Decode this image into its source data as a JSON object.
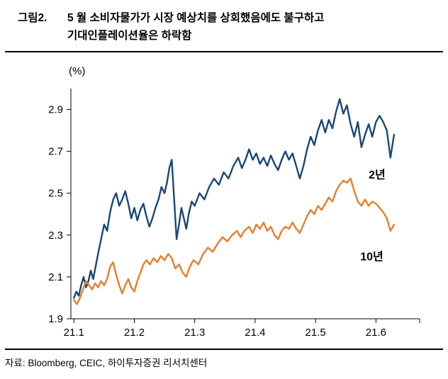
{
  "header": {
    "figure_label": "그림2.",
    "title_line1": "5 월 소비자물가가 시장 예상치를 상회했음에도 불구하고",
    "title_line2": "기대인플레이션율은 하락함"
  },
  "footer": {
    "source": "자료: Bloomberg, CEIC, 하이투자증권 리서치센터"
  },
  "chart_data": {
    "type": "line",
    "title": "5 월 소비자물가가 시장 예상치를 상회했음에도 불구하고 기대인플레이션율은 하락함",
    "unit_label": "(%)",
    "xlabel": "",
    "ylabel": "(%)",
    "grid": false,
    "legend_position": "inline-right",
    "xlim": [
      21.095,
      21.67
    ],
    "ylim": [
      1.9,
      3.0
    ],
    "x_ticks": [
      21.1,
      21.2,
      21.3,
      21.4,
      21.5,
      21.6
    ],
    "x_tick_labels": [
      "21.1",
      "21.2",
      "21.3",
      "21.4",
      "21.5",
      "21.6"
    ],
    "y_ticks": [
      1.9,
      2.1,
      2.3,
      2.5,
      2.7,
      2.9
    ],
    "y_tick_labels": [
      "1.9",
      "2.1",
      "2.3",
      "2.5",
      "2.7",
      "2.9"
    ],
    "series": [
      {
        "name": "2년",
        "color": "#1B4677",
        "label_pos": [
          21.588,
          2.57
        ],
        "points": [
          [
            21.1,
            2.0
          ],
          [
            21.104,
            2.03
          ],
          [
            21.108,
            2.01
          ],
          [
            21.112,
            2.06
          ],
          [
            21.116,
            2.1
          ],
          [
            21.12,
            2.05
          ],
          [
            21.124,
            2.08
          ],
          [
            21.128,
            2.13
          ],
          [
            21.132,
            2.09
          ],
          [
            21.136,
            2.15
          ],
          [
            21.14,
            2.21
          ],
          [
            21.145,
            2.28
          ],
          [
            21.15,
            2.35
          ],
          [
            21.155,
            2.32
          ],
          [
            21.16,
            2.41
          ],
          [
            21.165,
            2.47
          ],
          [
            21.17,
            2.5
          ],
          [
            21.175,
            2.44
          ],
          [
            21.18,
            2.47
          ],
          [
            21.185,
            2.51
          ],
          [
            21.19,
            2.45
          ],
          [
            21.195,
            2.38
          ],
          [
            21.2,
            2.43
          ],
          [
            21.205,
            2.37
          ],
          [
            21.21,
            2.42
          ],
          [
            21.215,
            2.45
          ],
          [
            21.22,
            2.39
          ],
          [
            21.225,
            2.34
          ],
          [
            21.23,
            2.38
          ],
          [
            21.235,
            2.43
          ],
          [
            21.24,
            2.47
          ],
          [
            21.245,
            2.53
          ],
          [
            21.25,
            2.5
          ],
          [
            21.254,
            2.55
          ],
          [
            21.258,
            2.62
          ],
          [
            21.262,
            2.66
          ],
          [
            21.266,
            2.47
          ],
          [
            21.27,
            2.28
          ],
          [
            21.274,
            2.35
          ],
          [
            21.278,
            2.43
          ],
          [
            21.282,
            2.38
          ],
          [
            21.286,
            2.33
          ],
          [
            21.29,
            2.4
          ],
          [
            21.295,
            2.46
          ],
          [
            21.3,
            2.44
          ],
          [
            21.308,
            2.5
          ],
          [
            21.316,
            2.47
          ],
          [
            21.324,
            2.53
          ],
          [
            21.332,
            2.57
          ],
          [
            21.34,
            2.54
          ],
          [
            21.348,
            2.6
          ],
          [
            21.356,
            2.57
          ],
          [
            21.364,
            2.63
          ],
          [
            21.372,
            2.67
          ],
          [
            21.378,
            2.62
          ],
          [
            21.384,
            2.66
          ],
          [
            21.39,
            2.71
          ],
          [
            21.396,
            2.66
          ],
          [
            21.402,
            2.69
          ],
          [
            21.408,
            2.64
          ],
          [
            21.414,
            2.67
          ],
          [
            21.42,
            2.63
          ],
          [
            21.426,
            2.68
          ],
          [
            21.432,
            2.64
          ],
          [
            21.438,
            2.61
          ],
          [
            21.444,
            2.66
          ],
          [
            21.45,
            2.7
          ],
          [
            21.456,
            2.66
          ],
          [
            21.462,
            2.69
          ],
          [
            21.468,
            2.63
          ],
          [
            21.474,
            2.57
          ],
          [
            21.48,
            2.63
          ],
          [
            21.486,
            2.71
          ],
          [
            21.492,
            2.77
          ],
          [
            21.498,
            2.73
          ],
          [
            21.504,
            2.8
          ],
          [
            21.51,
            2.85
          ],
          [
            21.516,
            2.79
          ],
          [
            21.522,
            2.85
          ],
          [
            21.528,
            2.81
          ],
          [
            21.534,
            2.89
          ],
          [
            21.54,
            2.95
          ],
          [
            21.546,
            2.88
          ],
          [
            21.552,
            2.92
          ],
          [
            21.558,
            2.83
          ],
          [
            21.564,
            2.77
          ],
          [
            21.57,
            2.84
          ],
          [
            21.576,
            2.72
          ],
          [
            21.582,
            2.78
          ],
          [
            21.588,
            2.83
          ],
          [
            21.594,
            2.77
          ],
          [
            21.6,
            2.84
          ],
          [
            21.606,
            2.87
          ],
          [
            21.612,
            2.84
          ],
          [
            21.618,
            2.8
          ],
          [
            21.624,
            2.67
          ],
          [
            21.63,
            2.78
          ]
        ]
      },
      {
        "name": "10년",
        "color": "#E87E2B",
        "label_pos": [
          21.574,
          2.18
        ],
        "points": [
          [
            21.1,
            1.99
          ],
          [
            21.105,
            1.97
          ],
          [
            21.11,
            2.0
          ],
          [
            21.115,
            2.04
          ],
          [
            21.12,
            2.08
          ],
          [
            21.125,
            2.06
          ],
          [
            21.13,
            2.04
          ],
          [
            21.135,
            2.07
          ],
          [
            21.14,
            2.05
          ],
          [
            21.145,
            2.08
          ],
          [
            21.15,
            2.06
          ],
          [
            21.155,
            2.09
          ],
          [
            21.16,
            2.15
          ],
          [
            21.165,
            2.17
          ],
          [
            21.17,
            2.11
          ],
          [
            21.175,
            2.06
          ],
          [
            21.18,
            2.02
          ],
          [
            21.185,
            2.06
          ],
          [
            21.19,
            2.09
          ],
          [
            21.195,
            2.05
          ],
          [
            21.2,
            2.03
          ],
          [
            21.205,
            2.08
          ],
          [
            21.21,
            2.12
          ],
          [
            21.215,
            2.16
          ],
          [
            21.22,
            2.18
          ],
          [
            21.226,
            2.16
          ],
          [
            21.232,
            2.19
          ],
          [
            21.238,
            2.17
          ],
          [
            21.244,
            2.2
          ],
          [
            21.25,
            2.18
          ],
          [
            21.256,
            2.21
          ],
          [
            21.262,
            2.19
          ],
          [
            21.268,
            2.14
          ],
          [
            21.274,
            2.16
          ],
          [
            21.28,
            2.12
          ],
          [
            21.286,
            2.1
          ],
          [
            21.292,
            2.15
          ],
          [
            21.298,
            2.18
          ],
          [
            21.306,
            2.16
          ],
          [
            21.314,
            2.21
          ],
          [
            21.322,
            2.24
          ],
          [
            21.33,
            2.22
          ],
          [
            21.338,
            2.26
          ],
          [
            21.346,
            2.29
          ],
          [
            21.354,
            2.27
          ],
          [
            21.362,
            2.3
          ],
          [
            21.37,
            2.32
          ],
          [
            21.376,
            2.29
          ],
          [
            21.382,
            2.32
          ],
          [
            21.39,
            2.34
          ],
          [
            21.396,
            2.31
          ],
          [
            21.402,
            2.35
          ],
          [
            21.408,
            2.33
          ],
          [
            21.414,
            2.36
          ],
          [
            21.42,
            2.32
          ],
          [
            21.426,
            2.34
          ],
          [
            21.432,
            2.3
          ],
          [
            21.438,
            2.28
          ],
          [
            21.444,
            2.32
          ],
          [
            21.45,
            2.34
          ],
          [
            21.456,
            2.33
          ],
          [
            21.462,
            2.36
          ],
          [
            21.468,
            2.33
          ],
          [
            21.474,
            2.31
          ],
          [
            21.48,
            2.35
          ],
          [
            21.486,
            2.39
          ],
          [
            21.492,
            2.42
          ],
          [
            21.498,
            2.4
          ],
          [
            21.504,
            2.44
          ],
          [
            21.51,
            2.42
          ],
          [
            21.516,
            2.45
          ],
          [
            21.522,
            2.48
          ],
          [
            21.528,
            2.46
          ],
          [
            21.534,
            2.51
          ],
          [
            21.54,
            2.54
          ],
          [
            21.546,
            2.56
          ],
          [
            21.552,
            2.55
          ],
          [
            21.558,
            2.57
          ],
          [
            21.564,
            2.51
          ],
          [
            21.57,
            2.46
          ],
          [
            21.576,
            2.44
          ],
          [
            21.582,
            2.47
          ],
          [
            21.588,
            2.44
          ],
          [
            21.594,
            2.46
          ],
          [
            21.6,
            2.45
          ],
          [
            21.606,
            2.43
          ],
          [
            21.612,
            2.41
          ],
          [
            21.618,
            2.38
          ],
          [
            21.624,
            2.32
          ],
          [
            21.63,
            2.35
          ]
        ]
      }
    ]
  }
}
